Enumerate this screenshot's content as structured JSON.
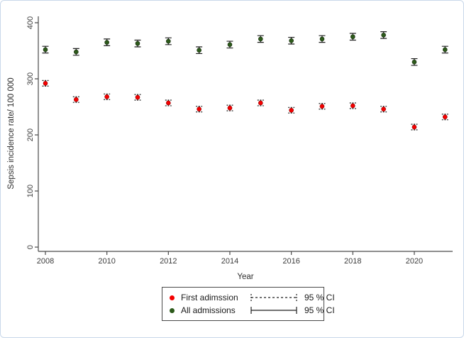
{
  "figure": {
    "xlabel": "Year",
    "ylabel": "Sepsis incidence rate/ 100 000"
  },
  "legend": {
    "rows": [
      {
        "series": "First adimssion",
        "ci_label": "95 % CI",
        "marker_color": "#f40000",
        "ci_line_style": "dashed"
      },
      {
        "series": "All admissions",
        "ci_label": "95 % CI",
        "marker_color": "#2d5a1b",
        "ci_line_style": "solid"
      }
    ]
  },
  "chart_data": {
    "type": "scatter",
    "title": "",
    "xlabel": "Year",
    "ylabel": "Sepsis incidence rate/ 100 000",
    "x": [
      2008,
      2009,
      2010,
      2011,
      2012,
      2013,
      2014,
      2015,
      2016,
      2017,
      2018,
      2019,
      2020,
      2021
    ],
    "series": [
      {
        "name": "First adimssion",
        "color": "#f40000",
        "marker": "circle",
        "ci_style": "dashed",
        "ci_halfwidth": 5,
        "values": [
          292,
          263,
          268,
          267,
          257,
          246,
          248,
          257,
          244,
          251,
          252,
          246,
          214,
          232
        ]
      },
      {
        "name": "All admissions",
        "color": "#2d5a1b",
        "marker": "circle",
        "ci_style": "solid",
        "ci_halfwidth": 6,
        "values": [
          352,
          348,
          365,
          363,
          367,
          351,
          361,
          371,
          368,
          371,
          375,
          378,
          330,
          352
        ]
      }
    ],
    "ylim": [
      0,
      400
    ],
    "yticks": [
      0,
      100,
      200,
      300,
      400
    ],
    "xticks": [
      2008,
      2010,
      2012,
      2014,
      2016,
      2018,
      2020
    ],
    "grid": false,
    "error_bars": "95% CI",
    "legend_position": "bottom-center",
    "axis_color": "#4a4a4a",
    "errorbar_color": "#1f1f1f",
    "text_color": "#3d3d3d"
  }
}
